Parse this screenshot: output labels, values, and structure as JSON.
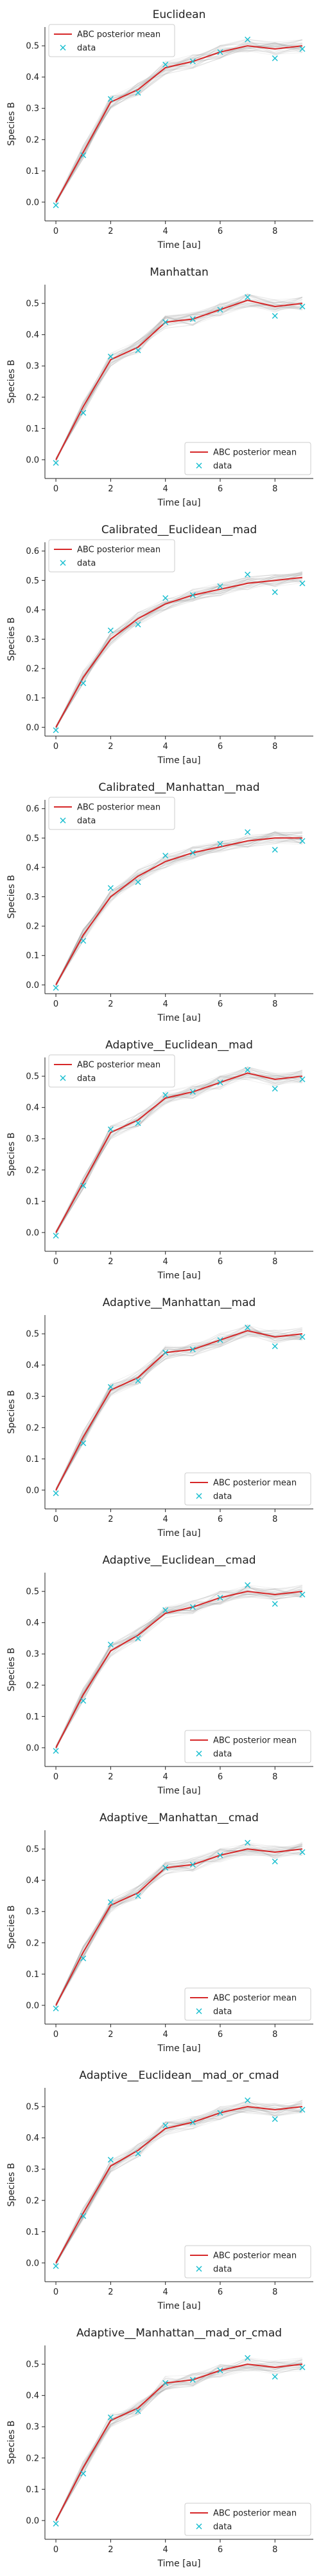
{
  "figure": {
    "colors": {
      "mean": "#d62728",
      "data": "#17becf",
      "samples": "#888888",
      "axis": "#222222"
    }
  },
  "chart_data": [
    {
      "type": "line",
      "title": "Euclidean",
      "xlabel": "Time [au]",
      "ylabel": "Species B",
      "xlim": [
        -0.4,
        9.4
      ],
      "ylim": [
        -0.06,
        0.56
      ],
      "xticks": [
        "0",
        "2",
        "4",
        "6",
        "8"
      ],
      "yticks": [
        "0.0",
        "0.1",
        "0.2",
        "0.3",
        "0.4",
        "0.5"
      ],
      "legend_position": "top-left",
      "series": [
        {
          "name": "ABC posterior mean",
          "kind": "line",
          "x": [
            0,
            1,
            2,
            3,
            4,
            5,
            6,
            7,
            8,
            9
          ],
          "y": [
            0.0,
            0.16,
            0.32,
            0.36,
            0.43,
            0.45,
            0.48,
            0.5,
            0.49,
            0.5
          ]
        },
        {
          "name": "data",
          "kind": "marker",
          "x": [
            0,
            1,
            2,
            3,
            4,
            5,
            6,
            7,
            8,
            9
          ],
          "y": [
            -0.01,
            0.15,
            0.33,
            0.35,
            0.44,
            0.45,
            0.48,
            0.52,
            0.46,
            0.49
          ]
        }
      ]
    },
    {
      "type": "line",
      "title": "Manhattan",
      "xlabel": "Time [au]",
      "ylabel": "Species B",
      "xlim": [
        -0.4,
        9.4
      ],
      "ylim": [
        -0.06,
        0.56
      ],
      "xticks": [
        "0",
        "2",
        "4",
        "6",
        "8"
      ],
      "yticks": [
        "0.0",
        "0.1",
        "0.2",
        "0.3",
        "0.4",
        "0.5"
      ],
      "legend_position": "bottom-right",
      "series": [
        {
          "name": "ABC posterior mean",
          "kind": "line",
          "x": [
            0,
            1,
            2,
            3,
            4,
            5,
            6,
            7,
            8,
            9
          ],
          "y": [
            0.0,
            0.17,
            0.32,
            0.36,
            0.44,
            0.45,
            0.48,
            0.51,
            0.49,
            0.5
          ]
        },
        {
          "name": "data",
          "kind": "marker",
          "x": [
            0,
            1,
            2,
            3,
            4,
            5,
            6,
            7,
            8,
            9
          ],
          "y": [
            -0.01,
            0.15,
            0.33,
            0.35,
            0.44,
            0.45,
            0.48,
            0.52,
            0.46,
            0.49
          ]
        }
      ]
    },
    {
      "type": "line",
      "title": "Calibrated__Euclidean__mad",
      "xlabel": "Time [au]",
      "ylabel": "Species B",
      "xlim": [
        -0.4,
        9.4
      ],
      "ylim": [
        -0.03,
        0.63
      ],
      "xticks": [
        "0",
        "2",
        "4",
        "6",
        "8"
      ],
      "yticks": [
        "0.0",
        "0.1",
        "0.2",
        "0.3",
        "0.4",
        "0.5",
        "0.6"
      ],
      "legend_position": "top-left",
      "series": [
        {
          "name": "ABC posterior mean",
          "kind": "line",
          "x": [
            0,
            1,
            2,
            3,
            4,
            5,
            6,
            7,
            8,
            9
          ],
          "y": [
            0.0,
            0.17,
            0.3,
            0.37,
            0.42,
            0.45,
            0.47,
            0.49,
            0.5,
            0.51
          ]
        },
        {
          "name": "data",
          "kind": "marker",
          "x": [
            0,
            1,
            2,
            3,
            4,
            5,
            6,
            7,
            8,
            9
          ],
          "y": [
            -0.01,
            0.15,
            0.33,
            0.35,
            0.44,
            0.45,
            0.48,
            0.52,
            0.46,
            0.49
          ]
        }
      ]
    },
    {
      "type": "line",
      "title": "Calibrated__Manhattan__mad",
      "xlabel": "Time [au]",
      "ylabel": "Species B",
      "xlim": [
        -0.4,
        9.4
      ],
      "ylim": [
        -0.03,
        0.63
      ],
      "xticks": [
        "0",
        "2",
        "4",
        "6",
        "8"
      ],
      "yticks": [
        "0.0",
        "0.1",
        "0.2",
        "0.3",
        "0.4",
        "0.5",
        "0.6"
      ],
      "legend_position": "top-left",
      "series": [
        {
          "name": "ABC posterior mean",
          "kind": "line",
          "x": [
            0,
            1,
            2,
            3,
            4,
            5,
            6,
            7,
            8,
            9
          ],
          "y": [
            0.0,
            0.17,
            0.3,
            0.37,
            0.42,
            0.45,
            0.47,
            0.49,
            0.5,
            0.5
          ]
        },
        {
          "name": "data",
          "kind": "marker",
          "x": [
            0,
            1,
            2,
            3,
            4,
            5,
            6,
            7,
            8,
            9
          ],
          "y": [
            -0.01,
            0.15,
            0.33,
            0.35,
            0.44,
            0.45,
            0.48,
            0.52,
            0.46,
            0.49
          ]
        }
      ]
    },
    {
      "type": "line",
      "title": "Adaptive__Euclidean__mad",
      "xlabel": "Time [au]",
      "ylabel": "Species B",
      "xlim": [
        -0.4,
        9.4
      ],
      "ylim": [
        -0.06,
        0.56
      ],
      "xticks": [
        "0",
        "2",
        "4",
        "6",
        "8"
      ],
      "yticks": [
        "0.0",
        "0.1",
        "0.2",
        "0.3",
        "0.4",
        "0.5"
      ],
      "legend_position": "top-left",
      "series": [
        {
          "name": "ABC posterior mean",
          "kind": "line",
          "x": [
            0,
            1,
            2,
            3,
            4,
            5,
            6,
            7,
            8,
            9
          ],
          "y": [
            0.0,
            0.16,
            0.32,
            0.36,
            0.43,
            0.45,
            0.48,
            0.51,
            0.49,
            0.5
          ]
        },
        {
          "name": "data",
          "kind": "marker",
          "x": [
            0,
            1,
            2,
            3,
            4,
            5,
            6,
            7,
            8,
            9
          ],
          "y": [
            -0.01,
            0.15,
            0.33,
            0.35,
            0.44,
            0.45,
            0.48,
            0.52,
            0.46,
            0.49
          ]
        }
      ]
    },
    {
      "type": "line",
      "title": "Adaptive__Manhattan__mad",
      "xlabel": "Time [au]",
      "ylabel": "Species B",
      "xlim": [
        -0.4,
        9.4
      ],
      "ylim": [
        -0.06,
        0.56
      ],
      "xticks": [
        "0",
        "2",
        "4",
        "6",
        "8"
      ],
      "yticks": [
        "0.0",
        "0.1",
        "0.2",
        "0.3",
        "0.4",
        "0.5"
      ],
      "legend_position": "bottom-right",
      "series": [
        {
          "name": "ABC posterior mean",
          "kind": "line",
          "x": [
            0,
            1,
            2,
            3,
            4,
            5,
            6,
            7,
            8,
            9
          ],
          "y": [
            0.0,
            0.17,
            0.32,
            0.36,
            0.44,
            0.45,
            0.48,
            0.51,
            0.49,
            0.5
          ]
        },
        {
          "name": "data",
          "kind": "marker",
          "x": [
            0,
            1,
            2,
            3,
            4,
            5,
            6,
            7,
            8,
            9
          ],
          "y": [
            -0.01,
            0.15,
            0.33,
            0.35,
            0.44,
            0.45,
            0.48,
            0.52,
            0.46,
            0.49
          ]
        }
      ]
    },
    {
      "type": "line",
      "title": "Adaptive__Euclidean__cmad",
      "xlabel": "Time [au]",
      "ylabel": "Species B",
      "xlim": [
        -0.4,
        9.4
      ],
      "ylim": [
        -0.06,
        0.56
      ],
      "xticks": [
        "0",
        "2",
        "4",
        "6",
        "8"
      ],
      "yticks": [
        "0.0",
        "0.1",
        "0.2",
        "0.3",
        "0.4",
        "0.5"
      ],
      "legend_position": "bottom-right",
      "series": [
        {
          "name": "ABC posterior mean",
          "kind": "line",
          "x": [
            0,
            1,
            2,
            3,
            4,
            5,
            6,
            7,
            8,
            9
          ],
          "y": [
            0.0,
            0.17,
            0.31,
            0.36,
            0.43,
            0.45,
            0.48,
            0.5,
            0.49,
            0.5
          ]
        },
        {
          "name": "data",
          "kind": "marker",
          "x": [
            0,
            1,
            2,
            3,
            4,
            5,
            6,
            7,
            8,
            9
          ],
          "y": [
            -0.01,
            0.15,
            0.33,
            0.35,
            0.44,
            0.45,
            0.48,
            0.52,
            0.46,
            0.49
          ]
        }
      ]
    },
    {
      "type": "line",
      "title": "Adaptive__Manhattan__cmad",
      "xlabel": "Time [au]",
      "ylabel": "Species B",
      "xlim": [
        -0.4,
        9.4
      ],
      "ylim": [
        -0.06,
        0.56
      ],
      "xticks": [
        "0",
        "2",
        "4",
        "6",
        "8"
      ],
      "yticks": [
        "0.0",
        "0.1",
        "0.2",
        "0.3",
        "0.4",
        "0.5"
      ],
      "legend_position": "bottom-right",
      "series": [
        {
          "name": "ABC posterior mean",
          "kind": "line",
          "x": [
            0,
            1,
            2,
            3,
            4,
            5,
            6,
            7,
            8,
            9
          ],
          "y": [
            0.0,
            0.17,
            0.32,
            0.36,
            0.44,
            0.45,
            0.48,
            0.5,
            0.49,
            0.5
          ]
        },
        {
          "name": "data",
          "kind": "marker",
          "x": [
            0,
            1,
            2,
            3,
            4,
            5,
            6,
            7,
            8,
            9
          ],
          "y": [
            -0.01,
            0.15,
            0.33,
            0.35,
            0.44,
            0.45,
            0.48,
            0.52,
            0.46,
            0.49
          ]
        }
      ]
    },
    {
      "type": "line",
      "title": "Adaptive__Euclidean__mad_or_cmad",
      "xlabel": "Time [au]",
      "ylabel": "Species B",
      "xlim": [
        -0.4,
        9.4
      ],
      "ylim": [
        -0.06,
        0.56
      ],
      "xticks": [
        "0",
        "2",
        "4",
        "6",
        "8"
      ],
      "yticks": [
        "0.0",
        "0.1",
        "0.2",
        "0.3",
        "0.4",
        "0.5"
      ],
      "legend_position": "bottom-right",
      "series": [
        {
          "name": "ABC posterior mean",
          "kind": "line",
          "x": [
            0,
            1,
            2,
            3,
            4,
            5,
            6,
            7,
            8,
            9
          ],
          "y": [
            0.0,
            0.16,
            0.31,
            0.36,
            0.43,
            0.45,
            0.48,
            0.5,
            0.49,
            0.5
          ]
        },
        {
          "name": "data",
          "kind": "marker",
          "x": [
            0,
            1,
            2,
            3,
            4,
            5,
            6,
            7,
            8,
            9
          ],
          "y": [
            -0.01,
            0.15,
            0.33,
            0.35,
            0.44,
            0.45,
            0.48,
            0.52,
            0.46,
            0.49
          ]
        }
      ]
    },
    {
      "type": "line",
      "title": "Adaptive__Manhattan__mad_or_cmad",
      "xlabel": "Time [au]",
      "ylabel": "Species B",
      "xlim": [
        -0.4,
        9.4
      ],
      "ylim": [
        -0.06,
        0.56
      ],
      "xticks": [
        "0",
        "2",
        "4",
        "6",
        "8"
      ],
      "yticks": [
        "0.0",
        "0.1",
        "0.2",
        "0.3",
        "0.4",
        "0.5"
      ],
      "legend_position": "bottom-right",
      "series": [
        {
          "name": "ABC posterior mean",
          "kind": "line",
          "x": [
            0,
            1,
            2,
            3,
            4,
            5,
            6,
            7,
            8,
            9
          ],
          "y": [
            0.0,
            0.17,
            0.32,
            0.36,
            0.44,
            0.45,
            0.48,
            0.5,
            0.49,
            0.5
          ]
        },
        {
          "name": "data",
          "kind": "marker",
          "x": [
            0,
            1,
            2,
            3,
            4,
            5,
            6,
            7,
            8,
            9
          ],
          "y": [
            -0.01,
            0.15,
            0.33,
            0.35,
            0.44,
            0.45,
            0.48,
            0.52,
            0.46,
            0.49
          ]
        }
      ]
    }
  ]
}
